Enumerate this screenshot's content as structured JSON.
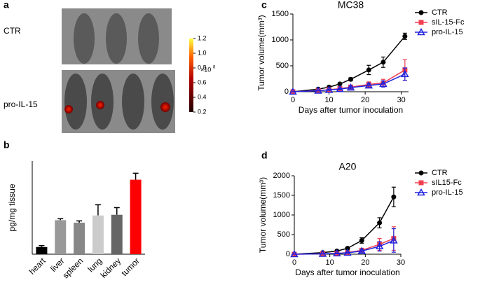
{
  "panel_a": {
    "label": "a",
    "rows": [
      "CTR",
      "pro-IL-15"
    ],
    "colorbar": {
      "ticks": [
        0.2,
        0.4,
        0.6,
        0.8,
        {
          "value": 1,
          "label": "1.0"
        },
        1.2
      ],
      "multiplier": "×10",
      "exponent": "8"
    }
  },
  "chart_data": [
    {
      "type": "bar",
      "panel_label": "b",
      "ylabel": "pg/mg tissue",
      "categories": [
        "heart",
        "liver",
        "spleen",
        "lung",
        "kidney",
        "tumor"
      ],
      "values": [
        20,
        95,
        88,
        108,
        110,
        208
      ],
      "errors": [
        4,
        4,
        5,
        30,
        20,
        18
      ],
      "colors": [
        "#000000",
        "#999999",
        "#888888",
        "#cccccc",
        "#666666",
        "#ff0000"
      ],
      "ylim": [
        0,
        260
      ]
    },
    {
      "type": "line",
      "panel_label": "c",
      "title": "MC38",
      "xlabel": "Days after tumor inoculation",
      "ylabel": "Tumor volume(mm³)",
      "x": [
        0,
        7,
        10,
        13,
        16,
        21,
        25,
        31
      ],
      "series": [
        {
          "name": "CTR",
          "color": "#000000",
          "marker": "circle",
          "values": [
            0,
            50,
            90,
            150,
            240,
            420,
            570,
            1070
          ],
          "errors": [
            0,
            10,
            15,
            20,
            30,
            90,
            100,
            60
          ]
        },
        {
          "name": "sIL-15-Fc",
          "color": "#f04050",
          "marker": "square",
          "values": [
            0,
            20,
            40,
            60,
            90,
            140,
            170,
            420
          ],
          "errors": [
            0,
            5,
            10,
            15,
            30,
            50,
            70,
            200
          ]
        },
        {
          "name": "pro-IL-15",
          "color": "#2222dd",
          "marker": "triangle",
          "values": [
            0,
            20,
            35,
            50,
            80,
            120,
            150,
            340
          ],
          "errors": [
            0,
            5,
            10,
            15,
            25,
            40,
            60,
            120
          ]
        }
      ],
      "xlim": [
        0,
        32
      ],
      "xticks": [
        0,
        10,
        20,
        30
      ],
      "ylim": [
        0,
        1500
      ],
      "yticks": [
        0,
        500,
        1000,
        1500
      ]
    },
    {
      "type": "line",
      "panel_label": "d",
      "title": "A20",
      "xlabel": "Days after tumor  inoculation",
      "ylabel": "Tumor volume(mm³)",
      "x": [
        0,
        8,
        12,
        15,
        19,
        24,
        28
      ],
      "series": [
        {
          "name": "CTR",
          "color": "#000000",
          "marker": "circle",
          "values": [
            0,
            40,
            80,
            150,
            350,
            800,
            1460
          ],
          "errors": [
            0,
            10,
            15,
            30,
            70,
            130,
            250
          ]
        },
        {
          "name": "sIL15-Fc",
          "color": "#f04050",
          "marker": "square",
          "values": [
            0,
            10,
            20,
            40,
            100,
            250,
            400
          ],
          "errors": [
            0,
            5,
            10,
            15,
            40,
            150,
            300
          ]
        },
        {
          "name": "pro-IL-15",
          "color": "#2222dd",
          "marker": "triangle",
          "values": [
            0,
            10,
            20,
            35,
            80,
            200,
            350
          ],
          "errors": [
            0,
            5,
            10,
            15,
            30,
            120,
            300
          ]
        }
      ],
      "xlim": [
        0,
        30
      ],
      "xticks": [
        0,
        10,
        20,
        30
      ],
      "ylim": [
        0,
        2000
      ],
      "yticks": [
        0,
        500,
        1000,
        1500,
        2000
      ]
    }
  ]
}
